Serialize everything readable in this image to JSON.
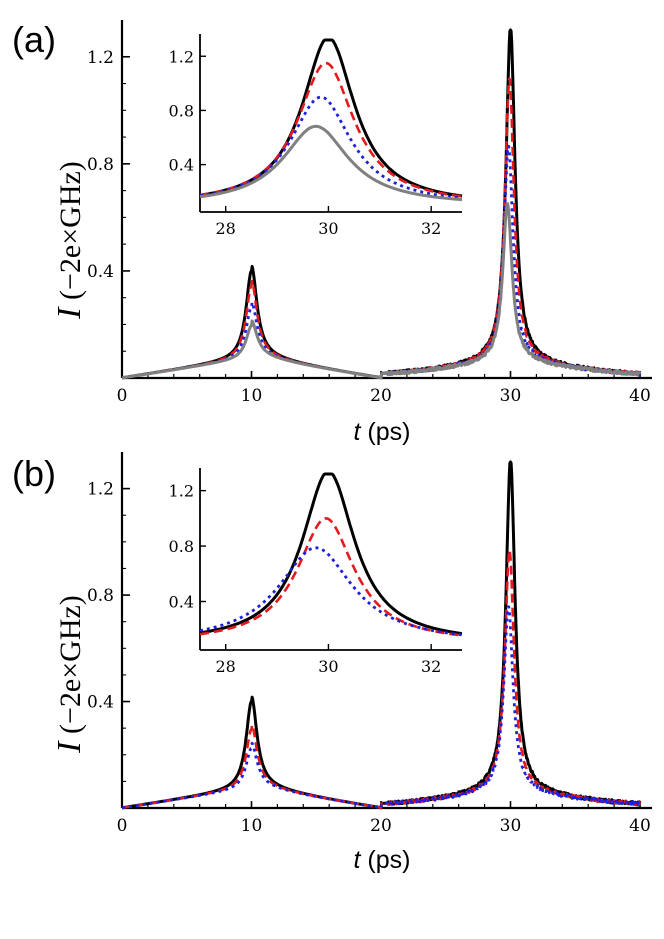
{
  "chart_data": [
    {
      "panel": "(a)",
      "type": "line",
      "xlabel": "t (ps)",
      "xlabel_var": "t",
      "xlabel_unit": " (ps)",
      "ylabel_var": "I",
      "ylabel_unit": "−2e×GHz",
      "xlim": [
        0,
        40
      ],
      "ylim": [
        0,
        1.3
      ],
      "xticks": [
        0,
        10,
        20,
        30,
        40
      ],
      "xtick_labels": [
        "0",
        "10",
        "20",
        "30",
        "40"
      ],
      "yticks": [
        0.4,
        0.8,
        1.2
      ],
      "ytick_labels": [
        "0.4",
        "0.8",
        "1.2"
      ],
      "series": [
        {
          "color": "#000000",
          "style": "solid",
          "peaks": [
            0.395,
            1.31
          ]
        },
        {
          "color": "#e41a1c",
          "style": "dashed",
          "peaks": [
            0.34,
            1.12
          ]
        },
        {
          "color": "#1f1fe0",
          "style": "dotted",
          "peaks": [
            0.26,
            0.87
          ]
        },
        {
          "color": "#808080",
          "style": "solid",
          "peaks": [
            0.19,
            0.655
          ]
        }
      ],
      "inset": {
        "xlim": [
          27.5,
          32.6
        ],
        "ylim": [
          0.05,
          1.32
        ],
        "xticks": [
          28,
          30,
          32
        ],
        "xtick_labels": [
          "28",
          "30",
          "32"
        ],
        "yticks": [
          0.4,
          0.8,
          1.2
        ],
        "ytick_labels": [
          "0.4",
          "0.8",
          "1.2"
        ],
        "peak_x": [
          30.0,
          29.95,
          29.85,
          29.75
        ]
      }
    },
    {
      "panel": "(b)",
      "type": "line",
      "xlabel": "t (ps)",
      "xlabel_var": "t",
      "xlabel_unit": " (ps)",
      "ylabel_var": "I",
      "ylabel_unit": "−2e×GHz",
      "xlim": [
        0,
        40
      ],
      "ylim": [
        0,
        1.3
      ],
      "xticks": [
        0,
        10,
        20,
        30,
        40
      ],
      "xtick_labels": [
        "0",
        "10",
        "20",
        "30",
        "40"
      ],
      "yticks": [
        0.4,
        0.8,
        1.2
      ],
      "ytick_labels": [
        "0.4",
        "0.8",
        "1.2"
      ],
      "series": [
        {
          "color": "#000000",
          "style": "solid",
          "peaks": [
            0.395,
            1.31
          ]
        },
        {
          "color": "#e41a1c",
          "style": "dashed",
          "peaks": [
            0.29,
            0.97
          ]
        },
        {
          "color": "#1f1fe0",
          "style": "dotted",
          "peaks": [
            0.22,
            0.76
          ]
        }
      ],
      "inset": {
        "xlim": [
          27.5,
          32.6
        ],
        "ylim": [
          0.05,
          1.32
        ],
        "xticks": [
          28,
          30,
          32
        ],
        "xtick_labels": [
          "28",
          "30",
          "32"
        ],
        "yticks": [
          0.4,
          0.8,
          1.2
        ],
        "ytick_labels": [
          "0.4",
          "0.8",
          "1.2"
        ],
        "peak_x": [
          30.0,
          29.95,
          29.75
        ]
      }
    }
  ]
}
